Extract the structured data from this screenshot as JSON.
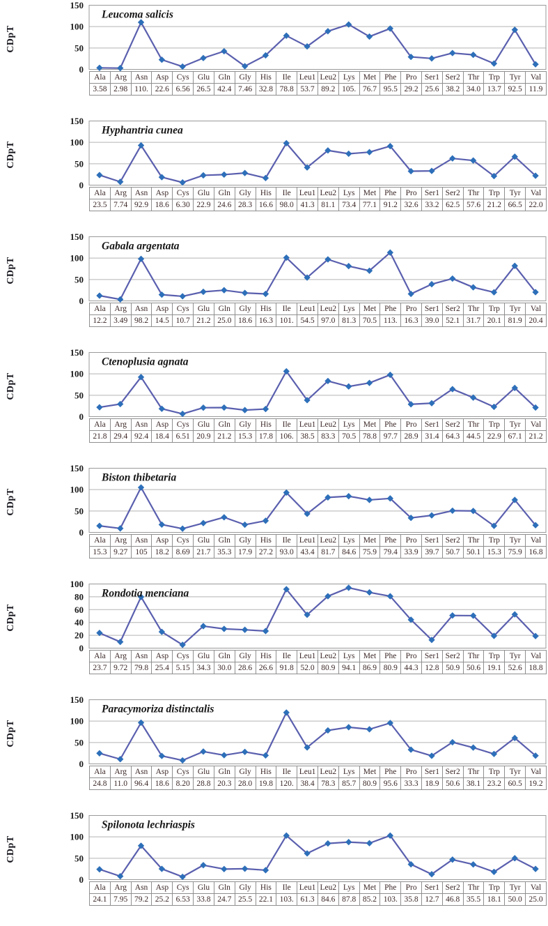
{
  "figure": {
    "description": "Eight stacked line charts of CDpT values per amino acid codon family for eight insect species, each with a data table beneath the x-axis",
    "y_axis_title": "CDpT"
  },
  "colors": {
    "line": "#5a5fae",
    "marker": "#2d6fb9",
    "grid": "#b3b3b3",
    "plot_border": "#9a9a9a",
    "table_border": "#8f8f8f",
    "tick_text": "#1b1b1b",
    "table_text": "#3b2626",
    "title_text": "#161616"
  },
  "categories": [
    "Ala",
    "Arg",
    "Asn",
    "Asp",
    "Cys",
    "Glu",
    "Gln",
    "Gly",
    "His",
    "Ile",
    "Leu1",
    "Leu2",
    "Lys",
    "Met",
    "Phe",
    "Pro",
    "Ser1",
    "Ser2",
    "Thr",
    "Trp",
    "Tyr",
    "Val"
  ],
  "chart_data": [
    {
      "type": "line",
      "title": "Leucoma salicis",
      "ylabel": "CDpT",
      "xlabel": "",
      "ylim": [
        0,
        150
      ],
      "yticks": [
        0,
        50,
        100,
        150
      ],
      "grid": true,
      "legend": "none",
      "values": [
        3.58,
        2.98,
        110,
        22.6,
        6.56,
        26.5,
        42.4,
        7.46,
        32.8,
        78.8,
        53.7,
        89.2,
        105,
        76.7,
        95.5,
        29.2,
        25.6,
        38.2,
        34.0,
        13.7,
        92.5,
        11.9
      ],
      "value_labels": [
        "3.58",
        "2.98",
        "110.",
        "22.6",
        "6.56",
        "26.5",
        "42.4",
        "7.46",
        "32.8",
        "78.8",
        "53.7",
        "89.2",
        "105.",
        "76.7",
        "95.5",
        "29.2",
        "25.6",
        "38.2",
        "34.0",
        "13.7",
        "92.5",
        "11.9"
      ]
    },
    {
      "type": "line",
      "title": "Hyphantria cunea",
      "ylabel": "CDpT",
      "xlabel": "",
      "ylim": [
        0,
        150
      ],
      "yticks": [
        0,
        50,
        100,
        150
      ],
      "grid": true,
      "legend": "none",
      "values": [
        23.5,
        7.74,
        92.9,
        18.6,
        6.3,
        22.9,
        24.6,
        28.3,
        16.6,
        98.0,
        41.3,
        81.1,
        73.4,
        77.1,
        91.2,
        32.6,
        33.2,
        62.5,
        57.6,
        21.2,
        66.5,
        22.0
      ],
      "value_labels": [
        "23.5",
        "7.74",
        "92.9",
        "18.6",
        "6.30",
        "22.9",
        "24.6",
        "28.3",
        "16.6",
        "98.0",
        "41.3",
        "81.1",
        "73.4",
        "77.1",
        "91.2",
        "32.6",
        "33.2",
        "62.5",
        "57.6",
        "21.2",
        "66.5",
        "22.0"
      ]
    },
    {
      "type": "line",
      "title": "Gabala argentata",
      "ylabel": "CDpT",
      "xlabel": "",
      "ylim": [
        0,
        150
      ],
      "yticks": [
        0,
        50,
        100,
        150
      ],
      "grid": true,
      "legend": "none",
      "values": [
        12.2,
        3.49,
        98.2,
        14.5,
        10.7,
        21.2,
        25.0,
        18.6,
        16.3,
        101,
        54.5,
        97.0,
        81.3,
        70.5,
        113,
        16.3,
        39.0,
        52.1,
        31.7,
        20.1,
        81.9,
        20.4
      ],
      "value_labels": [
        "12.2",
        "3.49",
        "98.2",
        "14.5",
        "10.7",
        "21.2",
        "25.0",
        "18.6",
        "16.3",
        "101.",
        "54.5",
        "97.0",
        "81.3",
        "70.5",
        "113.",
        "16.3",
        "39.0",
        "52.1",
        "31.7",
        "20.1",
        "81.9",
        "20.4"
      ]
    },
    {
      "type": "line",
      "title": "Ctenoplusia agnata",
      "ylabel": "CDpT",
      "xlabel": "",
      "ylim": [
        0,
        150
      ],
      "yticks": [
        0,
        50,
        100,
        150
      ],
      "grid": true,
      "legend": "none",
      "values": [
        21.8,
        29.4,
        92.4,
        18.4,
        6.51,
        20.9,
        21.2,
        15.3,
        17.8,
        106,
        38.5,
        83.3,
        70.5,
        78.8,
        97.7,
        28.9,
        31.4,
        64.3,
        44.5,
        22.9,
        67.1,
        21.2
      ],
      "value_labels": [
        "21.8",
        "29.4",
        "92.4",
        "18.4",
        "6.51",
        "20.9",
        "21.2",
        "15.3",
        "17.8",
        "106.",
        "38.5",
        "83.3",
        "70.5",
        "78.8",
        "97.7",
        "28.9",
        "31.4",
        "64.3",
        "44.5",
        "22.9",
        "67.1",
        "21.2"
      ]
    },
    {
      "type": "line",
      "title": "Biston thibetaria",
      "ylabel": "CDpT",
      "xlabel": "",
      "ylim": [
        0,
        150
      ],
      "yticks": [
        0,
        50,
        100,
        150
      ],
      "grid": true,
      "legend": "none",
      "values": [
        15.3,
        9.27,
        105,
        18.2,
        8.69,
        21.7,
        35.3,
        17.9,
        27.2,
        93.0,
        43.4,
        81.7,
        84.6,
        75.9,
        79.4,
        33.9,
        39.7,
        50.7,
        50.1,
        15.3,
        75.9,
        16.8
      ],
      "value_labels": [
        "15.3",
        "9.27",
        "105",
        "18.2",
        "8.69",
        "21.7",
        "35.3",
        "17.9",
        "27.2",
        "93.0",
        "43.4",
        "81.7",
        "84.6",
        "75.9",
        "79.4",
        "33.9",
        "39.7",
        "50.7",
        "50.1",
        "15.3",
        "75.9",
        "16.8"
      ]
    },
    {
      "type": "line",
      "title": "Rondotia menciana",
      "ylabel": "CDpT",
      "xlabel": "",
      "ylim": [
        0,
        100
      ],
      "yticks": [
        0,
        20,
        40,
        60,
        80,
        100
      ],
      "grid": true,
      "legend": "none",
      "values": [
        23.7,
        9.72,
        79.8,
        25.4,
        5.15,
        34.3,
        30.0,
        28.6,
        26.6,
        91.8,
        52.0,
        80.9,
        94.1,
        86.9,
        80.9,
        44.3,
        12.8,
        50.9,
        50.6,
        19.1,
        52.6,
        18.8
      ],
      "value_labels": [
        "23.7",
        "9.72",
        "79.8",
        "25.4",
        "5.15",
        "34.3",
        "30.0",
        "28.6",
        "26.6",
        "91.8",
        "52.0",
        "80.9",
        "94.1",
        "86.9",
        "80.9",
        "44.3",
        "12.8",
        "50.9",
        "50.6",
        "19.1",
        "52.6",
        "18.8"
      ]
    },
    {
      "type": "line",
      "title": "Paracymoriza distinctalis",
      "ylabel": "CDpT",
      "xlabel": "",
      "ylim": [
        0,
        150
      ],
      "yticks": [
        0,
        50,
        100,
        150
      ],
      "grid": true,
      "legend": "none",
      "values": [
        24.8,
        11.0,
        96.4,
        18.6,
        8.2,
        28.8,
        20.3,
        28.0,
        19.8,
        120,
        38.4,
        78.3,
        85.7,
        80.9,
        95.6,
        33.3,
        18.9,
        50.6,
        38.1,
        23.2,
        60.5,
        19.2
      ],
      "value_labels": [
        "24.8",
        "11.0",
        "96.4",
        "18.6",
        "8.20",
        "28.8",
        "20.3",
        "28.0",
        "19.8",
        "120.",
        "38.4",
        "78.3",
        "85.7",
        "80.9",
        "95.6",
        "33.3",
        "18.9",
        "50.6",
        "38.1",
        "23.2",
        "60.5",
        "19.2"
      ]
    },
    {
      "type": "line",
      "title": "Spilonota lechriaspis",
      "ylabel": "CDpT",
      "xlabel": "",
      "ylim": [
        0,
        150
      ],
      "yticks": [
        0,
        50,
        100,
        150
      ],
      "grid": true,
      "legend": "none",
      "values": [
        24.1,
        7.95,
        79.2,
        25.2,
        6.53,
        33.8,
        24.7,
        25.5,
        22.1,
        103,
        61.3,
        84.6,
        87.8,
        85.2,
        103,
        35.8,
        12.7,
        46.8,
        35.5,
        18.1,
        50.0,
        25.0
      ],
      "value_labels": [
        "24.1",
        "7.95",
        "79.2",
        "25.2",
        "6.53",
        "33.8",
        "24.7",
        "25.5",
        "22.1",
        "103.",
        "61.3",
        "84.6",
        "87.8",
        "85.2",
        "103.",
        "35.8",
        "12.7",
        "46.8",
        "35.5",
        "18.1",
        "50.0",
        "25.0"
      ]
    }
  ]
}
